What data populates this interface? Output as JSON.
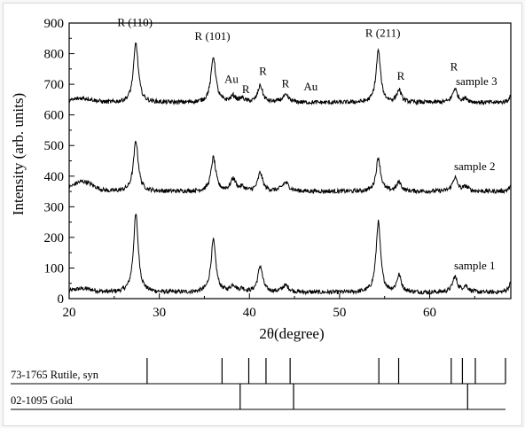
{
  "chart_data": {
    "type": "line",
    "xlabel": "2θ(degree)",
    "ylabel": "Intensity (arb. units)",
    "xlim": [
      20,
      69
    ],
    "ylim": [
      0,
      900
    ],
    "xticks": [
      20,
      30,
      40,
      50,
      60
    ],
    "yticks": [
      0,
      100,
      200,
      300,
      400,
      500,
      600,
      700,
      800,
      900
    ],
    "grid": false,
    "baseline_offsets": [
      20,
      350,
      640
    ],
    "peaks": [
      {
        "x": 27.4,
        "heights": [
          255,
          165,
          195
        ],
        "width": 0.32
      },
      {
        "x": 36.0,
        "heights": [
          170,
          110,
          150
        ],
        "width": 0.32
      },
      {
        "x": 38.2,
        "heights": [
          22,
          40,
          20
        ],
        "width": 0.35
      },
      {
        "x": 39.2,
        "heights": [
          10,
          12,
          12
        ],
        "width": 0.3
      },
      {
        "x": 41.2,
        "heights": [
          85,
          60,
          55
        ],
        "width": 0.32
      },
      {
        "x": 44.0,
        "heights": [
          22,
          28,
          22
        ],
        "width": 0.45
      },
      {
        "x": 54.3,
        "heights": [
          230,
          110,
          170
        ],
        "width": 0.3
      },
      {
        "x": 56.6,
        "heights": [
          55,
          30,
          40
        ],
        "width": 0.3
      },
      {
        "x": 62.8,
        "heights": [
          50,
          45,
          45
        ],
        "width": 0.32
      },
      {
        "x": 64.0,
        "heights": [
          20,
          15,
          12
        ],
        "width": 0.35
      },
      {
        "x": 69.0,
        "heights": [
          30,
          15,
          20
        ],
        "width": 0.3
      }
    ],
    "series": [
      {
        "name": "sample 1",
        "offset": 20
      },
      {
        "name": "sample 2",
        "offset": 350
      },
      {
        "name": "sample 3",
        "offset": 640
      }
    ],
    "annotations": [
      {
        "text": "R (110)",
        "x": 27.3,
        "y": 890
      },
      {
        "text": "R (101)",
        "x": 35.9,
        "y": 845
      },
      {
        "text": "Au",
        "x": 38.0,
        "y": 705
      },
      {
        "text": "R",
        "x": 39.6,
        "y": 672
      },
      {
        "text": "R",
        "x": 41.5,
        "y": 730
      },
      {
        "text": "R",
        "x": 44.0,
        "y": 690
      },
      {
        "text": "Au",
        "x": 46.8,
        "y": 680
      },
      {
        "text": "R (211)",
        "x": 54.8,
        "y": 855
      },
      {
        "text": "R",
        "x": 56.8,
        "y": 715
      },
      {
        "text": "R",
        "x": 62.7,
        "y": 745
      }
    ],
    "references": [
      {
        "label": "73-1765   Rutile, syn",
        "lines": [
          27.4,
          36.1,
          39.2,
          41.2,
          44.0,
          54.3,
          56.6,
          62.7,
          64.0,
          65.5,
          69.0
        ]
      },
      {
        "label": "02-1095   Gold",
        "lines": [
          38.2,
          44.4,
          64.6
        ]
      }
    ]
  }
}
